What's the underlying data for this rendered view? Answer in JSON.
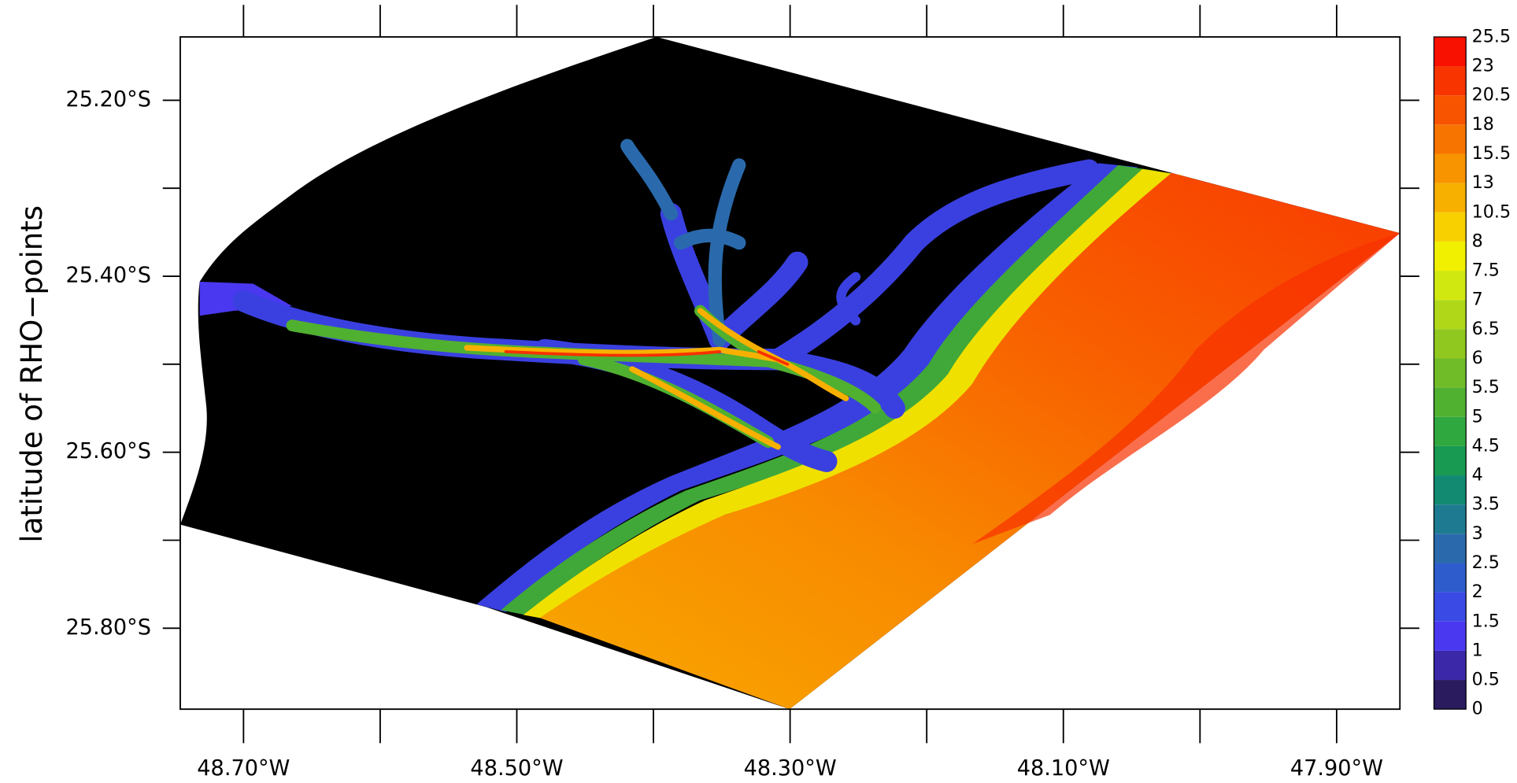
{
  "map": {
    "y_label": "latitude of RHO−points",
    "xlim": [
      -48.7463,
      -47.8537
    ],
    "ylim": [
      -25.892,
      -25.128
    ],
    "xticks": [
      {
        "value": -48.7,
        "label": "48.70°W"
      },
      {
        "value": -48.5,
        "label": "48.50°W"
      },
      {
        "value": -48.3,
        "label": "48.30°W"
      },
      {
        "value": -48.1,
        "label": "48.10°W"
      },
      {
        "value": -47.9,
        "label": "47.90°W"
      }
    ],
    "xminor": [
      -48.6,
      -48.4,
      -48.2,
      -48.0
    ],
    "yticks": [
      {
        "value": -25.2,
        "label": "25.20°S"
      },
      {
        "value": -25.4,
        "label": "25.40°S"
      },
      {
        "value": -25.6,
        "label": "25.60°S"
      },
      {
        "value": -25.8,
        "label": "25.80°S"
      }
    ],
    "yminor": [
      -25.3,
      -25.5,
      -25.7
    ],
    "colorbar": {
      "levels": [
        0,
        0.5,
        1,
        1.5,
        2,
        2.5,
        3,
        3.5,
        4,
        4.5,
        5,
        5.5,
        6,
        6.5,
        7,
        7.5,
        8,
        10.5,
        13,
        15.5,
        18,
        20.5,
        23,
        25.5
      ],
      "colors": [
        "#2a1a5e",
        "#3a28a8",
        "#4a38f0",
        "#3a4ae4",
        "#2e5ccc",
        "#2a6aac",
        "#1e7a90",
        "#128a72",
        "#189a52",
        "#30a840",
        "#50b030",
        "#70bb28",
        "#90c820",
        "#b0d818",
        "#d0e810",
        "#f0f000",
        "#f8d000",
        "#f8b000",
        "#f89400",
        "#f87400",
        "#f85400",
        "#f83400",
        "#f81000"
      ]
    }
  }
}
